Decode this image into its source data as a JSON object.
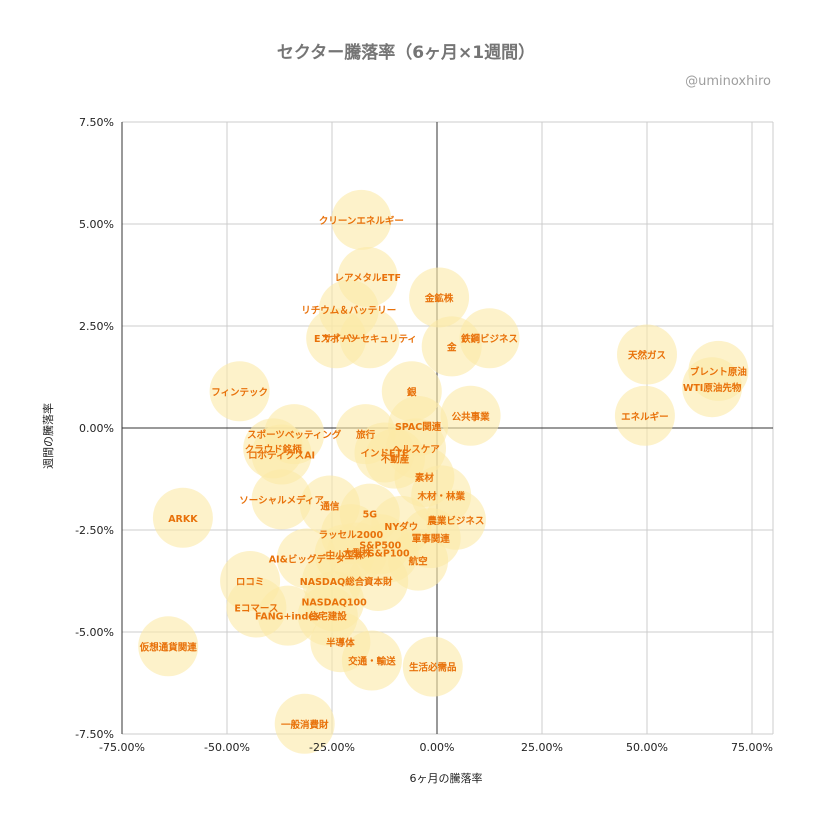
{
  "chart_data": {
    "type": "scatter",
    "title": "セクター騰落率（6ヶ月×1週間）",
    "credit": "@uminoxhiro",
    "xlabel": "6ヶ月の騰落率",
    "ylabel": "週間の騰落率",
    "xlim": [
      -75,
      80
    ],
    "ylim": [
      -7.5,
      7.5
    ],
    "x_ticks": [
      -75,
      -50,
      -25,
      0,
      25,
      50,
      75
    ],
    "y_ticks": [
      -7.5,
      -5,
      -2.5,
      0,
      2.5,
      5,
      7.5
    ],
    "x_tick_labels": [
      "-75.00%",
      "-50.00%",
      "-25.00%",
      "0.00%",
      "25.00%",
      "50.00%",
      "75.00%"
    ],
    "y_tick_labels": [
      "-7.50%",
      "-5.00%",
      "-2.50%",
      "0.00%",
      "2.50%",
      "5.00%",
      "7.50%"
    ],
    "grid": true,
    "bubble_color": "#fbe9a7",
    "label_color": "#e8710a",
    "points": [
      {
        "label": "クリーンエネルギー",
        "x": -18,
        "y": 5.1
      },
      {
        "label": "レアメタルETF",
        "x": -16.5,
        "y": 3.7
      },
      {
        "label": "金鉱株",
        "x": 0.5,
        "y": 3.2
      },
      {
        "label": "リチウム＆バッテリー",
        "x": -21,
        "y": 2.9
      },
      {
        "label": "Eスポーツ",
        "x": -24,
        "y": 2.2
      },
      {
        "label": "サイバーセキュリティ",
        "x": -16,
        "y": 2.2
      },
      {
        "label": "鉄鋼ビジネス",
        "x": 12.5,
        "y": 2.2
      },
      {
        "label": "金",
        "x": 3.5,
        "y": 2.0
      },
      {
        "label": "天然ガス",
        "x": 50,
        "y": 1.8
      },
      {
        "label": "ブレント原油",
        "x": 67,
        "y": 1.4
      },
      {
        "label": "WTI原油先物",
        "x": 65.5,
        "y": 1.0
      },
      {
        "label": "フィンテック",
        "x": -47,
        "y": 0.9
      },
      {
        "label": "銀",
        "x": -6,
        "y": 0.9
      },
      {
        "label": "エネルギー",
        "x": 49.5,
        "y": 0.3
      },
      {
        "label": "公共事業",
        "x": 8,
        "y": 0.3
      },
      {
        "label": "SPAC関連",
        "x": -4.5,
        "y": 0.05
      },
      {
        "label": "スポーツベッティング",
        "x": -34,
        "y": -0.15
      },
      {
        "label": "旅行",
        "x": -17,
        "y": -0.15
      },
      {
        "label": "クラウド銘柄",
        "x": -39,
        "y": -0.5
      },
      {
        "label": "ロボティクスAI",
        "x": -37,
        "y": -0.65
      },
      {
        "label": "ヘルスケア",
        "x": -5,
        "y": -0.5
      },
      {
        "label": "インドETF",
        "x": -12.5,
        "y": -0.6
      },
      {
        "label": "不動産",
        "x": -10,
        "y": -0.75
      },
      {
        "label": "素材",
        "x": -3,
        "y": -1.2
      },
      {
        "label": "木材・林業",
        "x": 1,
        "y": -1.65
      },
      {
        "label": "ソーシャルメディア",
        "x": -37,
        "y": -1.75
      },
      {
        "label": "通信",
        "x": -25.5,
        "y": -1.9
      },
      {
        "label": "ARKK",
        "x": -60.5,
        "y": -2.2
      },
      {
        "label": "5G",
        "x": -16,
        "y": -2.1
      },
      {
        "label": "農業ビジネス",
        "x": 4.5,
        "y": -2.25
      },
      {
        "label": "NYダウ",
        "x": -8.5,
        "y": -2.4
      },
      {
        "label": "ラッセル2000",
        "x": -20.5,
        "y": -2.6
      },
      {
        "label": "軍事関連",
        "x": -1.5,
        "y": -2.7
      },
      {
        "label": "S&P500",
        "x": -13.5,
        "y": -2.85
      },
      {
        "label": "AI&ビッグデータ",
        "x": -31,
        "y": -3.2
      },
      {
        "label": "中小型株",
        "x": -22,
        "y": -3.1
      },
      {
        "label": "大型株",
        "x": -19,
        "y": -3.05
      },
      {
        "label": "S&P100",
        "x": -11.5,
        "y": -3.05
      },
      {
        "label": "航空",
        "x": -4.5,
        "y": -3.25
      },
      {
        "label": "ロコミ",
        "x": -44.5,
        "y": -3.75
      },
      {
        "label": "NASDAQ総合",
        "x": -25,
        "y": -3.75
      },
      {
        "label": "資本財",
        "x": -14,
        "y": -3.75
      },
      {
        "label": "NASDAQ100",
        "x": -24.5,
        "y": -4.25
      },
      {
        "label": "Eコマース",
        "x": -43,
        "y": -4.4
      },
      {
        "label": "FANG+index",
        "x": -35.5,
        "y": -4.6
      },
      {
        "label": "住宅建設",
        "x": -26,
        "y": -4.6
      },
      {
        "label": "半導体",
        "x": -23,
        "y": -5.25
      },
      {
        "label": "仮想通貨関連",
        "x": -64,
        "y": -5.35
      },
      {
        "label": "交通・輸送",
        "x": -15.5,
        "y": -5.7
      },
      {
        "label": "生活必需品",
        "x": -1,
        "y": -5.85
      },
      {
        "label": "一般消費財",
        "x": -31.5,
        "y": -7.25
      }
    ]
  }
}
